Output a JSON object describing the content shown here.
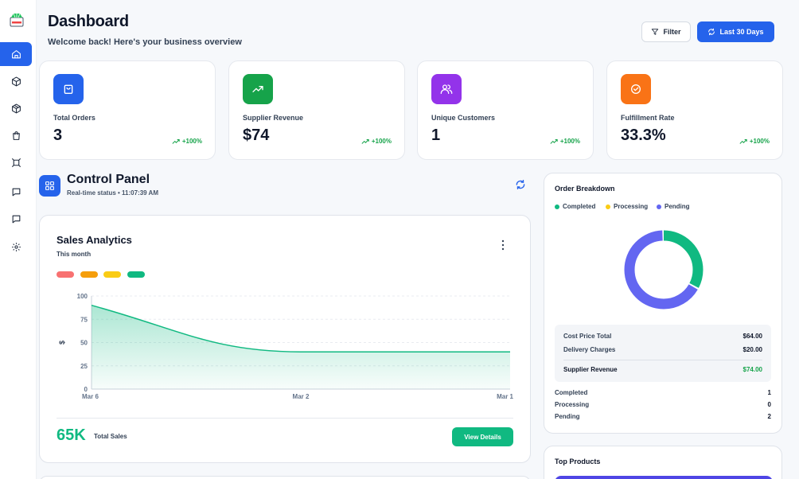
{
  "sidebar": {
    "logo": "store-logo-icon",
    "items": [
      {
        "name": "home",
        "icon": "home-icon",
        "active": true
      },
      {
        "name": "products",
        "icon": "box-icon",
        "active": false
      },
      {
        "name": "inventory",
        "icon": "package-icon",
        "active": false
      },
      {
        "name": "orders",
        "icon": "shopping-bag-icon",
        "active": false
      },
      {
        "name": "customers",
        "icon": "frame-icon",
        "active": false
      },
      {
        "name": "messages",
        "icon": "message-icon",
        "active": false
      },
      {
        "name": "chat",
        "icon": "chat-icon",
        "active": false
      },
      {
        "name": "settings",
        "icon": "gear-icon",
        "active": false
      }
    ]
  },
  "header": {
    "title": "Dashboard",
    "subtitle": "Welcome back! Here's your business overview",
    "filter_label": "Filter",
    "range_label": "Last 30 Days"
  },
  "stats": [
    {
      "label": "Total Orders",
      "value": "3",
      "change": "+100%",
      "color": "#2563eb",
      "icon": "shopping-bag-icon"
    },
    {
      "label": "Supplier Revenue",
      "value": "$74",
      "change": "+100%",
      "color": "#16a34a",
      "icon": "trending-up-icon"
    },
    {
      "label": "Unique Customers",
      "value": "1",
      "change": "+100%",
      "color": "#9333ea",
      "icon": "users-icon"
    },
    {
      "label": "Fulfillment Rate",
      "value": "33.3%",
      "change": "+100%",
      "color": "#f97316",
      "icon": "check-circle-icon"
    }
  ],
  "control_panel": {
    "title": "Control Panel",
    "status": "Real-time status • 11:07:39 AM"
  },
  "sales": {
    "title": "Sales Analytics",
    "period": "This month",
    "pills": [
      "#f87171",
      "#f59e0b",
      "#facc15",
      "#10b981"
    ],
    "total": "65K",
    "total_label": "Total Sales",
    "details_label": "View Details"
  },
  "chart_data": {
    "type": "area",
    "x": [
      "Mar 6",
      "Mar 2",
      "Mar 1"
    ],
    "series": [
      {
        "values": [
          90,
          40,
          40
        ],
        "color": "#10b981"
      }
    ],
    "y_ticks": [
      "100",
      "75",
      "50",
      "25",
      "0"
    ],
    "ylabel": "$",
    "ylim": [
      0,
      100
    ],
    "grid": true
  },
  "order_breakdown": {
    "title": "Order Breakdown",
    "legend": [
      {
        "label": "Completed",
        "color": "#10b981",
        "count": 1
      },
      {
        "label": "Processing",
        "color": "#facc15",
        "count": 0
      },
      {
        "label": "Pending",
        "color": "#6366f1",
        "count": 2
      }
    ],
    "summary": {
      "cost_label": "Cost Price Total",
      "cost_value": "$64.00",
      "delivery_label": "Delivery Charges",
      "delivery_value": "$20.00",
      "revenue_label": "Supplier Revenue",
      "revenue_value": "$74.00"
    },
    "counts": [
      {
        "label": "Completed",
        "value": "1"
      },
      {
        "label": "Processing",
        "value": "0"
      },
      {
        "label": "Pending",
        "value": "2"
      }
    ]
  },
  "top_products": {
    "title": "Top Products"
  }
}
